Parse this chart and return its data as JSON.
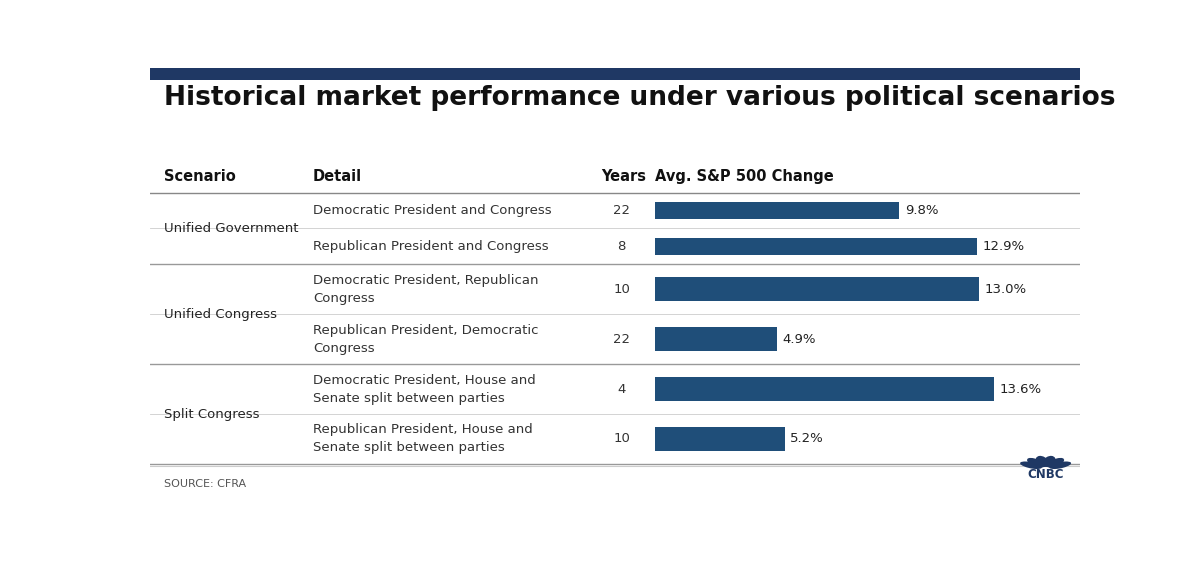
{
  "title": "Historical market performance under various political scenarios",
  "source": "SOURCE: CFRA",
  "col_headers": [
    "Scenario",
    "Detail",
    "Years",
    "Avg. S&P 500 Change"
  ],
  "rows": [
    {
      "scenario": "Unified Government",
      "detail": "Democratic President and Congress",
      "years": "22",
      "value": 9.8,
      "label": "9.8%",
      "group_start": true,
      "group_end": false,
      "multiline": false
    },
    {
      "scenario": "Unified Government",
      "detail": "Republican President and Congress",
      "years": "8",
      "value": 12.9,
      "label": "12.9%",
      "group_start": false,
      "group_end": true,
      "multiline": false
    },
    {
      "scenario": "Unified Congress",
      "detail": "Democratic President, Republican\nCongress",
      "years": "10",
      "value": 13.0,
      "label": "13.0%",
      "group_start": true,
      "group_end": false,
      "multiline": true
    },
    {
      "scenario": "Unified Congress",
      "detail": "Republican President, Democratic\nCongress",
      "years": "22",
      "value": 4.9,
      "label": "4.9%",
      "group_start": false,
      "group_end": true,
      "multiline": true
    },
    {
      "scenario": "Split Congress",
      "detail": "Democratic President, House and\nSenate split between parties",
      "years": "4",
      "value": 13.6,
      "label": "13.6%",
      "group_start": true,
      "group_end": false,
      "multiline": true
    },
    {
      "scenario": "Split Congress",
      "detail": "Republican President, House and\nSenate split between parties",
      "years": "10",
      "value": 5.2,
      "label": "5.2%",
      "group_start": false,
      "group_end": true,
      "multiline": true
    }
  ],
  "bar_color": "#1f4e79",
  "max_value": 15.0,
  "background_color": "#ffffff",
  "title_fontsize": 19,
  "header_fontsize": 10.5,
  "cell_fontsize": 9.5,
  "scenario_fontsize": 9.5,
  "source_fontsize": 8,
  "divider_color": "#cccccc",
  "group_divider_color": "#999999",
  "top_bar_color": "#1f3864",
  "top_bar_height": 0.028
}
